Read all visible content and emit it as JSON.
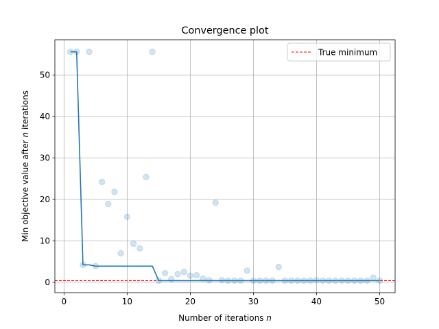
{
  "chart_data": {
    "type": "line",
    "title": "Convergence plot",
    "xlabel_main": "Number of iterations ",
    "xlabel_italic": "n",
    "ylabel_main": "Min objective value after ",
    "ylabel_italic": "n",
    "ylabel_tail": " iterations",
    "xlim": [
      -1.45,
      52.45
    ],
    "ylim": [
      -2.5,
      58.5
    ],
    "xticks": [
      0,
      10,
      20,
      30,
      40,
      50
    ],
    "yticks": [
      0,
      10,
      20,
      30,
      40,
      50
    ],
    "grid": true,
    "legend_position": "top-right",
    "true_minimum": {
      "label": "True minimum",
      "value": 0.4,
      "color": "#ff0000"
    },
    "line_color": "#1f77b4",
    "scatter_color": "#1f77b4",
    "iterations": [
      1,
      2,
      3,
      4,
      5,
      6,
      7,
      8,
      9,
      10,
      11,
      12,
      13,
      14,
      15,
      16,
      17,
      18,
      19,
      20,
      21,
      22,
      23,
      24,
      25,
      26,
      27,
      28,
      29,
      30,
      31,
      32,
      33,
      34,
      35,
      36,
      37,
      38,
      39,
      40,
      41,
      42,
      43,
      44,
      45,
      46,
      47,
      48,
      49,
      50
    ],
    "evaluations": [
      55.6,
      55.6,
      4.2,
      55.6,
      3.9,
      24.2,
      18.9,
      21.8,
      7.0,
      15.8,
      9.3,
      8.2,
      25.4,
      55.6,
      0.4,
      2.2,
      0.8,
      2.0,
      2.5,
      1.6,
      1.7,
      0.9,
      0.5,
      19.2,
      0.5,
      0.4,
      0.4,
      0.4,
      2.8,
      0.4,
      0.4,
      0.4,
      0.4,
      3.7,
      0.4,
      0.4,
      0.4,
      0.4,
      0.4,
      0.5,
      0.4,
      0.4,
      0.4,
      0.4,
      0.4,
      0.4,
      0.4,
      0.4,
      1.1,
      0.4
    ],
    "min_values": [
      55.6,
      55.6,
      4.2,
      4.2,
      3.9,
      3.9,
      3.9,
      3.9,
      3.9,
      3.9,
      3.9,
      3.9,
      3.9,
      3.9,
      0.4,
      0.4,
      0.4,
      0.4,
      0.4,
      0.4,
      0.4,
      0.4,
      0.4,
      0.4,
      0.4,
      0.4,
      0.4,
      0.4,
      0.4,
      0.4,
      0.4,
      0.4,
      0.4,
      0.4,
      0.4,
      0.4,
      0.4,
      0.4,
      0.4,
      0.4,
      0.4,
      0.4,
      0.4,
      0.4,
      0.4,
      0.4,
      0.4,
      0.4,
      0.4,
      0.4
    ]
  }
}
